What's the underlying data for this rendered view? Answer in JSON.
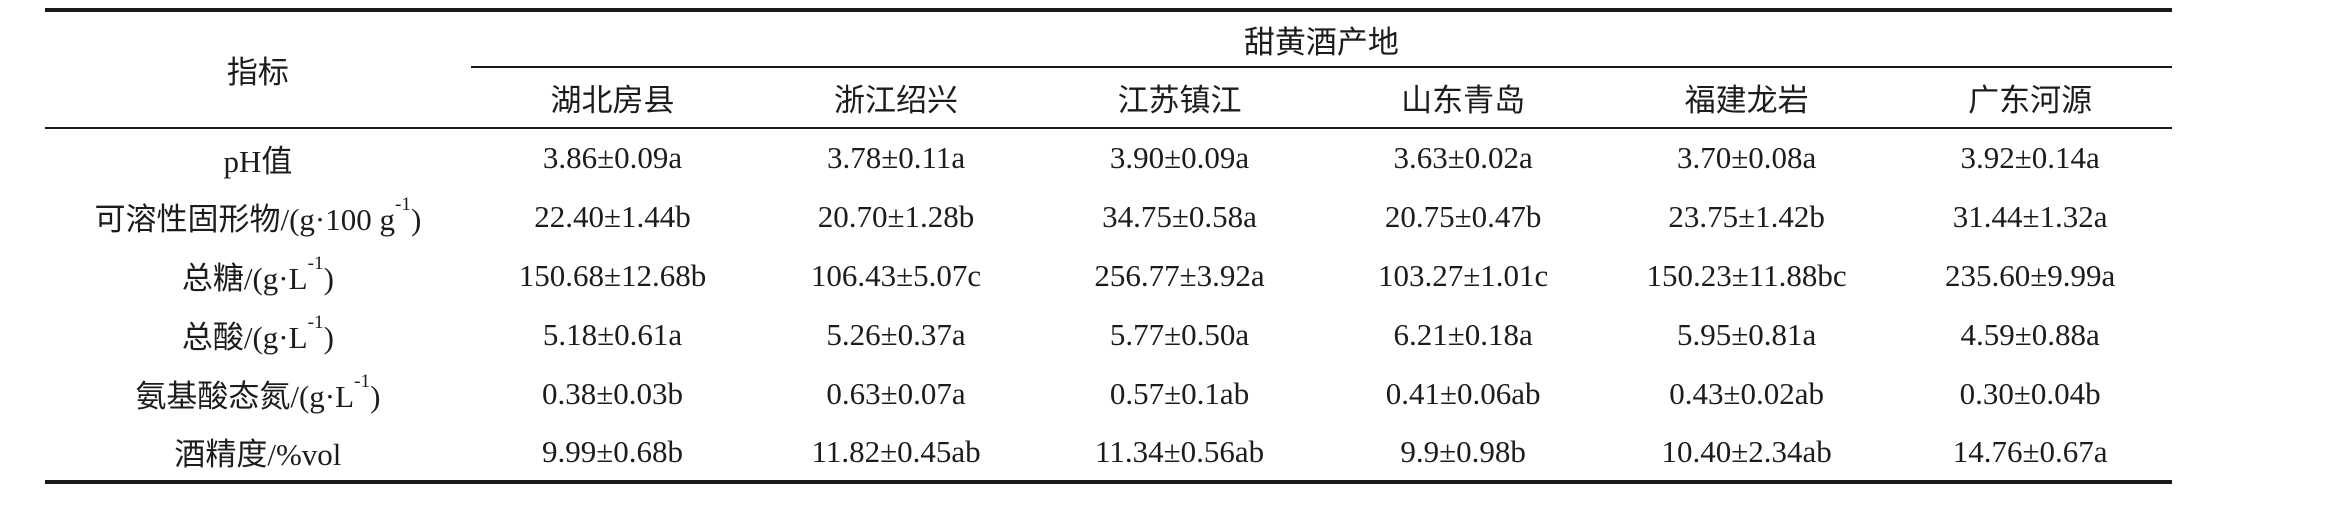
{
  "page": {
    "background": "#ffffff",
    "text_color": "#1c1c1c",
    "rule_color": "#1a1a1a"
  },
  "table": {
    "indicator_header": "指标",
    "group_header": "甜黄酒产地",
    "origin_headers": [
      "湖北房县",
      "浙江绍兴",
      "江苏镇江",
      "山东青岛",
      "福建龙岩",
      "广东河源"
    ],
    "rows": [
      {
        "label_pre": "pH值",
        "label_sup": "",
        "label_post": "",
        "values": [
          "3.86±0.09a",
          "3.78±0.11a",
          "3.90±0.09a",
          "3.63±0.02a",
          "3.70±0.08a",
          "3.92±0.14a"
        ]
      },
      {
        "label_pre": "可溶性固形物/(g·100 g",
        "label_sup": "-1",
        "label_post": ")",
        "values": [
          "22.40±1.44b",
          "20.70±1.28b",
          "34.75±0.58a",
          "20.75±0.47b",
          "23.75±1.42b",
          "31.44±1.32a"
        ]
      },
      {
        "label_pre": "总糖/(g·L",
        "label_sup": "-1",
        "label_post": ")",
        "values": [
          "150.68±12.68b",
          "106.43±5.07c",
          "256.77±3.92a",
          "103.27±1.01c",
          "150.23±11.88bc",
          "235.60±9.99a"
        ]
      },
      {
        "label_pre": "总酸/(g·L",
        "label_sup": "-1",
        "label_post": ")",
        "values": [
          "5.18±0.61a",
          "5.26±0.37a",
          "5.77±0.50a",
          "6.21±0.18a",
          "5.95±0.81a",
          "4.59±0.88a"
        ]
      },
      {
        "label_pre": "氨基酸态氮/(g·L",
        "label_sup": "-1",
        "label_post": ")",
        "values": [
          "0.38±0.03b",
          "0.63±0.07a",
          "0.57±0.1ab",
          "0.41±0.06ab",
          "0.43±0.02ab",
          "0.30±0.04b"
        ]
      },
      {
        "label_pre": "酒精度/%vol",
        "label_sup": "",
        "label_post": "",
        "values": [
          "9.99±0.68b",
          "11.82±0.45ab",
          "11.34±0.56ab",
          "9.9±0.98b",
          "10.40±2.34ab",
          "14.76±0.67a"
        ]
      }
    ]
  }
}
